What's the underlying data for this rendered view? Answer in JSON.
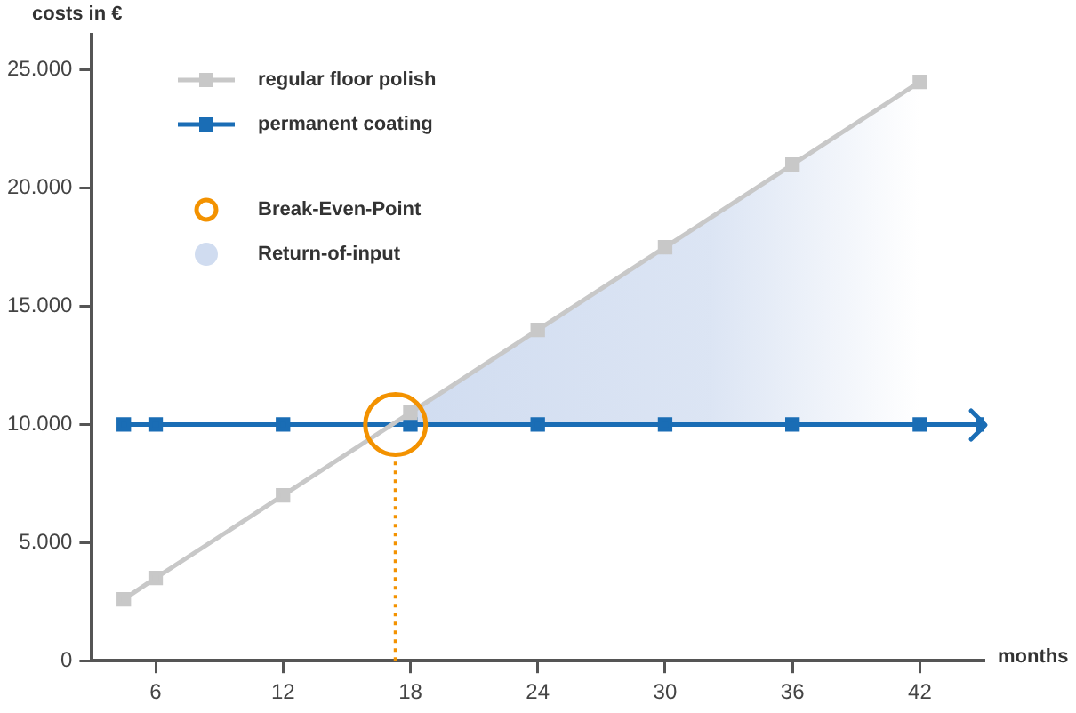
{
  "chart_data": {
    "type": "line",
    "ylabel": "costs in €",
    "xlabel": "months",
    "xlim": [
      3,
      45
    ],
    "xticks": [
      6,
      12,
      18,
      24,
      30,
      36,
      42
    ],
    "ylim": [
      0,
      26500
    ],
    "yticks": [
      {
        "value": 0,
        "label": "0"
      },
      {
        "value": 5000,
        "label": "5.000"
      },
      {
        "value": 10000,
        "label": "10.000"
      },
      {
        "value": 15000,
        "label": "15.000"
      },
      {
        "value": 20000,
        "label": "20.000"
      },
      {
        "value": 25000,
        "label": "25.000"
      }
    ],
    "grid": false,
    "legend": "top left",
    "marker": "square",
    "series": [
      {
        "name": "regular floor polish",
        "color": "#c8c8c8",
        "x": [
          4.5,
          6,
          12,
          18,
          24,
          30,
          36,
          42
        ],
        "values": [
          2600,
          3500,
          7000,
          10500,
          14000,
          17500,
          21000,
          24500
        ]
      },
      {
        "name": "permanent coating",
        "color": "#1a6db5",
        "x": [
          4.5,
          6,
          12,
          18,
          24,
          30,
          36,
          42,
          45
        ],
        "values": [
          10000,
          10000,
          10000,
          10000,
          10000,
          10000,
          10000,
          10000,
          10000
        ]
      },
      {
        "name": "Break-Even-Point",
        "type": "scatter",
        "marker": "circle",
        "color": "#f39200",
        "x": [
          17.3
        ],
        "values": [
          10000
        ]
      },
      {
        "name": "Return-of-input",
        "type": "area",
        "marker": "none",
        "color": "#d0dcf0",
        "x": [
          17.3,
          18,
          24,
          30,
          36,
          42
        ],
        "values": [
          10100,
          10500,
          14000,
          17500,
          21000,
          24500
        ]
      }
    ],
    "ref_lines": [
      {
        "axis": "x",
        "value": 17.3,
        "color": "#f39200",
        "line_style": "dotted"
      }
    ]
  }
}
